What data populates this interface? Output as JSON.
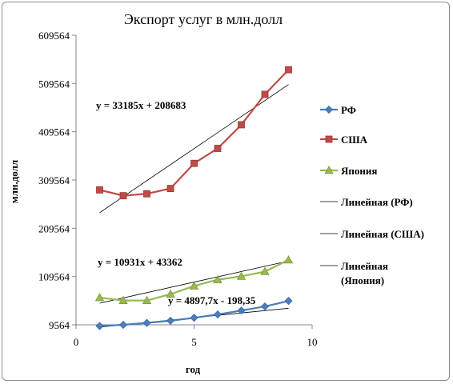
{
  "chart_data": {
    "type": "line",
    "title": "Экспорт услуг в млн.долл",
    "xlabel": "год",
    "ylabel": "млн.долл",
    "xlim": [
      0,
      10
    ],
    "ylim": [
      9564,
      609564
    ],
    "x_ticks": [
      0,
      5,
      10
    ],
    "y_ticks": [
      9564,
      109564,
      209564,
      309564,
      409564,
      509564,
      609564
    ],
    "grid": false,
    "legend_position": "right",
    "series": [
      {
        "name": "РФ",
        "color": "#4a7ebb",
        "marker": "diamond",
        "x": [
          1,
          2,
          3,
          4,
          5,
          6,
          7,
          8,
          9
        ],
        "y": [
          7000,
          9500,
          13500,
          18000,
          24000,
          31000,
          39000,
          47500,
          59000
        ]
      },
      {
        "name": "США",
        "color": "#be4b48",
        "marker": "square",
        "x": [
          1,
          2,
          3,
          4,
          5,
          6,
          7,
          8,
          9
        ],
        "y": [
          289000,
          277000,
          281000,
          292000,
          344000,
          375000,
          424000,
          487000,
          538000
        ]
      },
      {
        "name": "Япония",
        "color": "#98b954",
        "marker": "triangle",
        "x": [
          1,
          2,
          3,
          4,
          5,
          6,
          7,
          8,
          9
        ],
        "y": [
          66000,
          60000,
          60000,
          73000,
          90000,
          103000,
          110000,
          120000,
          144000
        ]
      }
    ],
    "trendlines": [
      {
        "name": "Линейная (РФ)",
        "slope": 4897.7,
        "intercept": -198.35,
        "label": "y = 4897,7x - 198,35"
      },
      {
        "name": "Линейная (США)",
        "slope": 33185,
        "intercept": 208683,
        "label": "y = 33185x + 208683"
      },
      {
        "name": "Линейная (Япония)",
        "slope": 10931,
        "intercept": 43362,
        "label": "y = 10931x + 43362"
      }
    ],
    "legend": [
      "РФ",
      "США",
      "Япония",
      "Линейная (РФ)",
      "Линейная (США)",
      "Линейная (Япония)"
    ]
  }
}
